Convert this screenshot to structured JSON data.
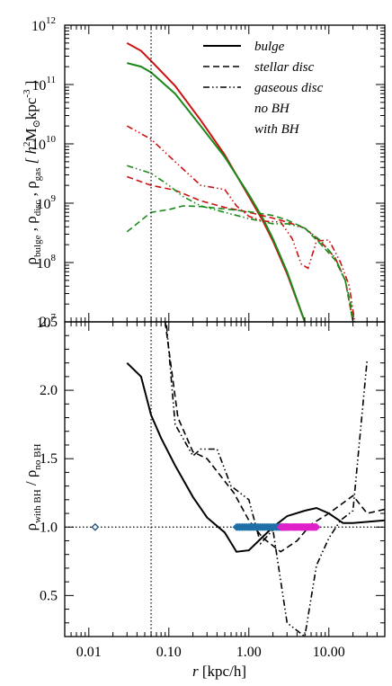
{
  "chart_data": [
    {
      "type": "line",
      "panel": "top",
      "xscale": "log",
      "yscale": "log",
      "xlim": [
        0.005,
        50
      ],
      "ylim": [
        10000000,
        1000000000000
      ],
      "xlabel": "",
      "ylabel_parts": [
        "ρ",
        "bulge",
        " , ρ",
        "disc",
        " , ρ",
        "gas",
        "   [ h",
        "2",
        "M",
        "⊙",
        "kpc",
        "-3",
        " ]"
      ],
      "yticks": [
        10000000,
        100000000,
        1000000000,
        10000000000,
        100000000000,
        1000000000000
      ],
      "ytick_labels": [
        {
          "base": "10",
          "exp": "7"
        },
        {
          "base": "10",
          "exp": "8"
        },
        {
          "base": "10",
          "exp": "9"
        },
        {
          "base": "10",
          "exp": "10"
        },
        {
          "base": "10",
          "exp": "11"
        },
        {
          "base": "10",
          "exp": "12"
        }
      ],
      "vline_x": 0.06,
      "legend_position": "top-right",
      "legend": [
        {
          "label": "bulge",
          "style": "solid",
          "color": "#000000"
        },
        {
          "label": "stellar disc",
          "style": "dashed",
          "color": "#000000"
        },
        {
          "label": "gaseous disc",
          "style": "dash-dot-dot",
          "color": "#000000"
        },
        {
          "label": "no BH",
          "style": "text",
          "color": "#1a8a1a"
        },
        {
          "label": "with BH",
          "style": "text",
          "color": "#cc1111"
        }
      ],
      "series": [
        {
          "component": "bulge",
          "model": "with BH",
          "color": "#cc1111",
          "style": "solid",
          "x": [
            0.03,
            0.045,
            0.06,
            0.12,
            0.25,
            0.5,
            1.0,
            1.5,
            2.0,
            3.0,
            5.0
          ],
          "y": [
            500000000000,
            370000000000,
            250000000000,
            95000000000,
            25000000000,
            6500000000,
            1300000000,
            500000000,
            230000000,
            65000000,
            10000000
          ]
        },
        {
          "component": "bulge",
          "model": "no BH",
          "color": "#1a8a1a",
          "style": "solid",
          "x": [
            0.03,
            0.045,
            0.06,
            0.12,
            0.25,
            0.5,
            1.0,
            1.5,
            2.0,
            3.0,
            5.0
          ],
          "y": [
            230000000000,
            200000000000,
            160000000000,
            70000000000,
            20000000000,
            6000000000,
            1400000000,
            550000000,
            250000000,
            70000000,
            10000000
          ]
        },
        {
          "component": "stellar disc",
          "model": "with BH",
          "color": "#cc1111",
          "style": "dashed",
          "x": [
            0.03,
            0.06,
            0.12,
            0.25,
            0.5,
            1.0,
            2.0,
            3.0,
            5.0,
            8.0,
            12.0,
            16.0,
            20.0
          ],
          "y": [
            2800000000,
            2000000000,
            1650000000,
            1100000000,
            850000000,
            700000000,
            560000000,
            480000000,
            380000000,
            220000000,
            120000000,
            50000000,
            10000000
          ]
        },
        {
          "component": "stellar disc",
          "model": "no BH",
          "color": "#1a8a1a",
          "style": "dashed",
          "x": [
            0.03,
            0.06,
            0.1,
            0.15,
            0.25,
            0.5,
            1.0,
            2.0,
            3.0,
            5.0,
            8.0,
            12.0,
            16.0,
            21.0
          ],
          "y": [
            330000000,
            700000000,
            780000000,
            900000000,
            880000000,
            800000000,
            720000000,
            620000000,
            520000000,
            380000000,
            200000000,
            110000000,
            50000000,
            10000000
          ]
        },
        {
          "component": "gaseous disc",
          "model": "with BH",
          "color": "#cc1111",
          "style": "dash-dot-dot",
          "x": [
            0.03,
            0.06,
            0.12,
            0.25,
            0.5,
            0.7,
            1.0,
            1.5,
            2.5,
            3.5,
            4.5,
            5.5,
            7.0,
            10.0,
            14.0,
            18.0,
            21.0
          ],
          "y": [
            20000000000,
            12000000000,
            5000000000,
            2000000000,
            1700000000,
            900000000,
            600000000,
            500000000,
            480000000,
            250000000,
            95000000,
            80000000,
            230000000,
            240000000,
            100000000,
            40000000,
            10000000
          ]
        },
        {
          "component": "gaseous disc",
          "model": "no BH",
          "color": "#1a8a1a",
          "style": "dash-dot-dot",
          "x": [
            0.03,
            0.06,
            0.1,
            0.15,
            0.25,
            0.5,
            1.0,
            2.0,
            3.0,
            5.0,
            8.0,
            12.0,
            16.0,
            20.0
          ],
          "y": [
            4300000000,
            3200000000,
            2000000000,
            1300000000,
            900000000,
            700000000,
            550000000,
            450000000,
            450000000,
            380000000,
            230000000,
            120000000,
            50000000,
            10000000
          ]
        }
      ]
    },
    {
      "type": "line",
      "panel": "bottom",
      "xscale": "log",
      "yscale": "linear",
      "xlim": [
        0.005,
        50
      ],
      "ylim": [
        0.2,
        2.5
      ],
      "xlabel": "r",
      "xlabel_unit": "[kpc/h]",
      "ylabel_parts": [
        "ρ",
        "with BH",
        " / ρ",
        "no BH"
      ],
      "xticks": [
        0.01,
        0.1,
        1.0,
        10.0
      ],
      "xtick_labels": [
        "0.01",
        "0.10",
        "1.00",
        "10.00"
      ],
      "yticks": [
        0.5,
        1.0,
        1.5,
        2.0,
        2.5
      ],
      "ytick_labels": [
        "0.5",
        "1.0",
        "1.5",
        "2.0",
        "2.5"
      ],
      "hline_y": 1.0,
      "vline_x": 0.06,
      "series": [
        {
          "component": "bulge",
          "style": "solid",
          "color": "#000000",
          "x": [
            0.03,
            0.045,
            0.06,
            0.08,
            0.12,
            0.2,
            0.3,
            0.5,
            0.7,
            1.0,
            1.5,
            2.0,
            3.0,
            5.0,
            7.0,
            10.0,
            15.0,
            20.0,
            50.0
          ],
          "y": [
            2.2,
            2.1,
            1.82,
            1.65,
            1.45,
            1.22,
            1.07,
            0.96,
            0.82,
            0.83,
            0.93,
            1.0,
            1.08,
            1.12,
            1.14,
            1.1,
            1.03,
            1.03,
            1.05
          ]
        },
        {
          "component": "stellar disc",
          "style": "dashed",
          "color": "#000000",
          "x": [
            0.06,
            0.09,
            0.13,
            0.2,
            0.3,
            0.45,
            0.65,
            1.0,
            1.5,
            2.5,
            4.0,
            6.0,
            10.0,
            20.0,
            30.0,
            50.0
          ],
          "y": [
            2.6,
            2.5,
            1.8,
            1.55,
            1.5,
            1.37,
            1.25,
            1.05,
            0.92,
            0.82,
            0.9,
            1.02,
            1.1,
            1.23,
            1.1,
            1.13
          ]
        },
        {
          "component": "gaseous disc",
          "style": "dash-dot-dot",
          "color": "#000000",
          "x": [
            0.09,
            0.12,
            0.2,
            0.25,
            0.4,
            0.6,
            1.0,
            1.4,
            2.0,
            3.0,
            5.0,
            7.0,
            10.0,
            14.0,
            20.0,
            30.0
          ],
          "y": [
            2.6,
            1.75,
            1.52,
            1.57,
            1.57,
            1.3,
            1.2,
            0.88,
            0.98,
            0.3,
            0.2,
            0.72,
            0.92,
            1.05,
            1.12,
            2.22
          ]
        }
      ],
      "markers": [
        {
          "name": "isolated marker",
          "color": "#1f4e79",
          "shape": "diamond",
          "x": [
            0.012
          ],
          "y": [
            1.0
          ]
        },
        {
          "name": "blue marker band",
          "color": "#1f6fa8",
          "shape": "diamond",
          "x_range": [
            0.7,
            3.0
          ],
          "y": 1.0
        },
        {
          "name": "magenta marker band",
          "color": "#e020c8",
          "shape": "diamond",
          "x_range": [
            2.5,
            7.0
          ],
          "y": 1.0
        }
      ]
    }
  ]
}
